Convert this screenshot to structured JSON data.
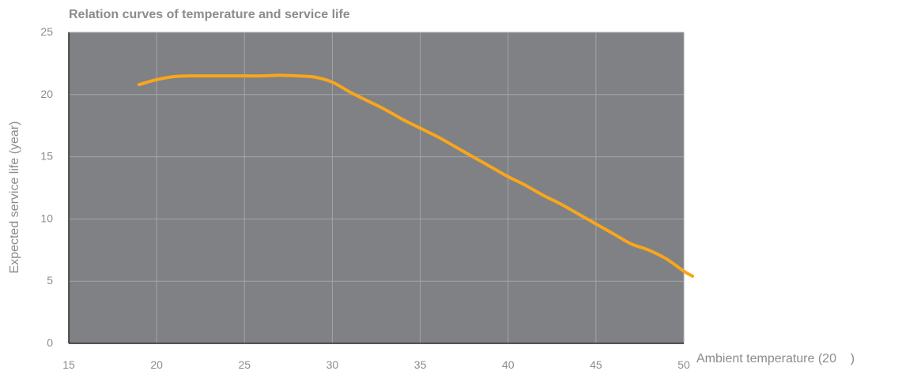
{
  "chart_data": {
    "type": "line",
    "title": "Relation curves of temperature and service life",
    "xlabel": "Ambient temperature (20    )",
    "ylabel": "Expected service life (year)",
    "xlim": [
      15,
      50
    ],
    "ylim": [
      0,
      25
    ],
    "x_ticks": [
      "15",
      "20",
      "25",
      "30",
      "35",
      "40",
      "45",
      "50"
    ],
    "y_ticks": [
      "0",
      "5",
      "10",
      "15",
      "20",
      "25"
    ],
    "grid": true,
    "series": [
      {
        "values": [
          [
            19,
            20.8
          ],
          [
            20,
            21.2
          ],
          [
            21,
            21.45
          ],
          [
            22,
            21.5
          ],
          [
            23,
            21.5
          ],
          [
            24,
            21.5
          ],
          [
            25,
            21.5
          ],
          [
            26,
            21.5
          ],
          [
            27,
            21.55
          ],
          [
            28,
            21.5
          ],
          [
            29,
            21.4
          ],
          [
            30,
            21.0
          ],
          [
            31,
            20.2
          ],
          [
            32,
            19.5
          ],
          [
            33,
            18.8
          ],
          [
            34,
            18.0
          ],
          [
            35,
            17.3
          ],
          [
            36,
            16.6
          ],
          [
            37,
            15.8
          ],
          [
            38,
            15.0
          ],
          [
            39,
            14.2
          ],
          [
            40,
            13.4
          ],
          [
            41,
            12.7
          ],
          [
            42,
            11.9
          ],
          [
            43,
            11.2
          ],
          [
            44,
            10.4
          ],
          [
            45,
            9.6
          ],
          [
            46,
            8.8
          ],
          [
            47,
            8.0
          ],
          [
            48,
            7.5
          ],
          [
            49,
            6.8
          ],
          [
            50,
            5.8
          ],
          [
            50.5,
            5.4
          ]
        ]
      }
    ],
    "colors": {
      "plot_background": "#808184",
      "grid": "#a4a5a8",
      "axis": "#2a2a2a",
      "line": "#f8a61c",
      "text": "#8b8c8f"
    }
  }
}
